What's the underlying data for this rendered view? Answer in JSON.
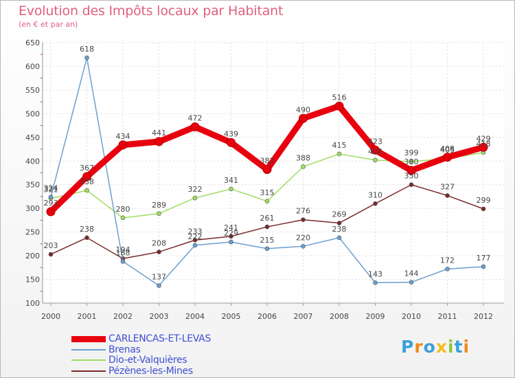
{
  "title": "Evolution des Impôts locaux par Habitant",
  "subtitle": "(en € et par an)",
  "logo": "Proxiti",
  "chart_data": {
    "type": "line",
    "title": "Evolution des Impôts locaux par Habitant",
    "subtitle": "(en € et par an)",
    "xlabel": "",
    "ylabel": "",
    "x": [
      "2000",
      "2001",
      "2002",
      "2003",
      "2004",
      "2005",
      "2006",
      "2007",
      "2008",
      "2009",
      "2010",
      "2011",
      "2012"
    ],
    "ylim": [
      100,
      650
    ],
    "yticks": [
      100,
      150,
      200,
      250,
      300,
      350,
      400,
      450,
      500,
      550,
      600,
      650
    ],
    "grid": true,
    "legend_position": "bottom-left",
    "series": [
      {
        "name": "CARLENCAS-ET-LEVAS",
        "color": "#e8000e",
        "values": [
          293,
          367,
          434,
          441,
          472,
          439,
          382,
          490,
          516,
          423,
          380,
          408,
          429
        ]
      },
      {
        "name": "Brenas",
        "color": "#6a9fd0",
        "values": [
          324,
          618,
          188,
          137,
          222,
          229,
          215,
          220,
          238,
          143,
          144,
          172,
          177
        ]
      },
      {
        "name": "Dio-et-Valquières",
        "color": "#9fdc60",
        "values": [
          321,
          338,
          280,
          289,
          322,
          341,
          315,
          388,
          415,
          402,
          399,
          405,
          418
        ]
      },
      {
        "name": "Pézènes-les-Mines",
        "color": "#7a2a2a",
        "values": [
          203,
          238,
          194,
          208,
          233,
          241,
          261,
          276,
          269,
          310,
          350,
          327,
          299
        ]
      }
    ]
  }
}
